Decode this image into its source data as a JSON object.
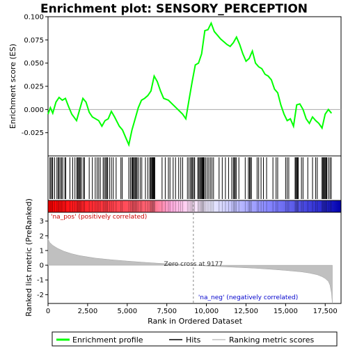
{
  "chart_data": {
    "type": "line",
    "title": "Enrichment plot: SENSORY_PERCEPTION",
    "xlabel": "Rank in Ordered Dataset",
    "xlim": [
      0,
      18500
    ],
    "x_ticks": [
      0,
      2500,
      5000,
      7500,
      10000,
      12500,
      15000,
      17500
    ],
    "x_tick_labels": [
      "0",
      "2,500",
      "5,000",
      "7,500",
      "10,000",
      "12,500",
      "15,000",
      "17,500"
    ],
    "es_panel": {
      "ylabel": "Enrichment score (ES)",
      "ylim": [
        -0.05,
        0.1
      ],
      "y_ticks": [
        -0.025,
        0.0,
        0.025,
        0.05,
        0.075,
        0.1
      ],
      "y_tick_labels": [
        "-0.025",
        "0.000",
        "0.025",
        "0.050",
        "0.075",
        "0.100"
      ],
      "series": [
        {
          "name": "Enrichment profile",
          "color": "#00ff00",
          "x": [
            0,
            150,
            300,
            500,
            700,
            900,
            1100,
            1300,
            1500,
            1800,
            2000,
            2200,
            2400,
            2600,
            2800,
            3000,
            3200,
            3400,
            3600,
            3800,
            4000,
            4200,
            4500,
            4700,
            4900,
            5100,
            5300,
            5500,
            5700,
            5900,
            6100,
            6300,
            6500,
            6700,
            6900,
            7100,
            7300,
            7600,
            7900,
            8200,
            8500,
            8700,
            8900,
            9100,
            9300,
            9500,
            9700,
            9900,
            10100,
            10300,
            10500,
            10700,
            10900,
            11100,
            11300,
            11500,
            11700,
            11900,
            12100,
            12300,
            12500,
            12700,
            12900,
            13100,
            13300,
            13500,
            13700,
            13900,
            14100,
            14300,
            14500,
            14700,
            14900,
            15100,
            15300,
            15500,
            15700,
            15900,
            16100,
            16300,
            16500,
            16700,
            16900,
            17100,
            17300,
            17500,
            17700,
            17900
          ],
          "values": [
            -0.005,
            0.002,
            -0.004,
            0.008,
            0.013,
            0.01,
            0.012,
            0.003,
            -0.005,
            -0.012,
            0.0,
            0.012,
            0.008,
            -0.003,
            -0.008,
            -0.01,
            -0.012,
            -0.018,
            -0.012,
            -0.01,
            -0.002,
            -0.008,
            -0.018,
            -0.022,
            -0.03,
            -0.038,
            -0.022,
            -0.01,
            0.002,
            0.01,
            0.012,
            0.015,
            0.02,
            0.036,
            0.03,
            0.02,
            0.012,
            0.01,
            0.005,
            0.0,
            -0.005,
            -0.01,
            0.01,
            0.03,
            0.048,
            0.05,
            0.06,
            0.085,
            0.086,
            0.093,
            0.084,
            0.08,
            0.076,
            0.073,
            0.07,
            0.068,
            0.072,
            0.078,
            0.07,
            0.06,
            0.052,
            0.055,
            0.063,
            0.05,
            0.046,
            0.044,
            0.038,
            0.036,
            0.032,
            0.022,
            0.018,
            0.005,
            -0.005,
            -0.012,
            -0.01,
            -0.018,
            0.005,
            0.006,
            0.0,
            -0.01,
            -0.015,
            -0.008,
            -0.012,
            -0.015,
            -0.02,
            -0.005,
            0.0,
            -0.004
          ]
        }
      ]
    },
    "hits_panel": {
      "legend_label": "Hits",
      "color": "#000000",
      "positions": [
        120,
        180,
        260,
        300,
        420,
        560,
        640,
        700,
        780,
        860,
        930,
        1060,
        1120,
        1380,
        1560,
        1700,
        1820,
        1880,
        1930,
        1990,
        2040,
        2120,
        2240,
        2300,
        2600,
        2800,
        2980,
        3100,
        3200,
        3300,
        3480,
        3560,
        3640,
        3700,
        3760,
        3880,
        4000,
        4120,
        4300,
        4600,
        4680,
        5100,
        5200,
        5280,
        5340,
        5380,
        5450,
        5500,
        5560,
        5620,
        5700,
        5820,
        5920,
        6150,
        6300,
        6420,
        6480,
        6540,
        6580,
        6620,
        6660,
        6700,
        6740,
        7200,
        7400,
        7600,
        7700,
        7900,
        8050,
        8250,
        8380,
        8500,
        8800,
        8900,
        9000,
        9060,
        9120,
        9200,
        9260,
        9450,
        9520,
        9580,
        9640,
        9700,
        9740,
        9780,
        9820,
        9860,
        9950,
        10050,
        10150,
        10250,
        10350,
        10450,
        10800,
        11000,
        11200,
        11400,
        11600,
        11700,
        11760,
        11820,
        11880,
        12050,
        12450,
        12650,
        12720,
        12780,
        12840,
        13200,
        13300,
        13450,
        13600,
        13800,
        14200,
        14400,
        14500,
        15000,
        15100,
        15200,
        15600,
        15650,
        15700,
        15750,
        15800,
        16000,
        16100,
        16400,
        16700,
        16900,
        17000,
        17300,
        17350,
        17400,
        17450,
        17500,
        17550,
        17600,
        17700,
        17800,
        17880
      ]
    },
    "metric_panel": {
      "ylabel": "Ranked list metric (PreRanked)",
      "legend_label": "Ranking metric scores",
      "color": "#c0c0c0",
      "ylim": [
        -2.6,
        3.6
      ],
      "y_ticks": [
        -2,
        -1,
        0,
        1,
        2,
        3
      ],
      "y_tick_labels": [
        "-2",
        "-1",
        "0",
        "1",
        "2",
        "3"
      ],
      "x": [
        0,
        100,
        300,
        600,
        1000,
        1500,
        2000,
        3000,
        4000,
        5000,
        6000,
        7000,
        8000,
        9177,
        10000,
        11000,
        12000,
        13000,
        14000,
        15000,
        16000,
        16500,
        17000,
        17300,
        17500,
        17700,
        17800,
        17900,
        17950
      ],
      "values": [
        1.8,
        1.55,
        1.35,
        1.15,
        0.95,
        0.78,
        0.65,
        0.48,
        0.37,
        0.28,
        0.2,
        0.13,
        0.07,
        0.0,
        -0.05,
        -0.1,
        -0.15,
        -0.2,
        -0.27,
        -0.35,
        -0.45,
        -0.53,
        -0.65,
        -0.78,
        -0.9,
        -1.1,
        -1.35,
        -1.9,
        -2.6
      ]
    },
    "annotations": {
      "zero_cross": "Zero cross at 9177",
      "zero_cross_x": 9177,
      "pos_label": "'na_pos' (positively correlated)",
      "neg_label": "'na_neg' (negatively correlated)",
      "pos_color": "#cc0000",
      "neg_color": "#0000cc"
    },
    "legend": {
      "position": "bottom",
      "entries": [
        "Enrichment profile",
        "Hits",
        "Ranking metric scores"
      ]
    },
    "gradient_colors": [
      "#ff0000",
      "#ff66aa",
      "#ffccff",
      "#ccccff",
      "#6666ff",
      "#0000aa"
    ]
  }
}
